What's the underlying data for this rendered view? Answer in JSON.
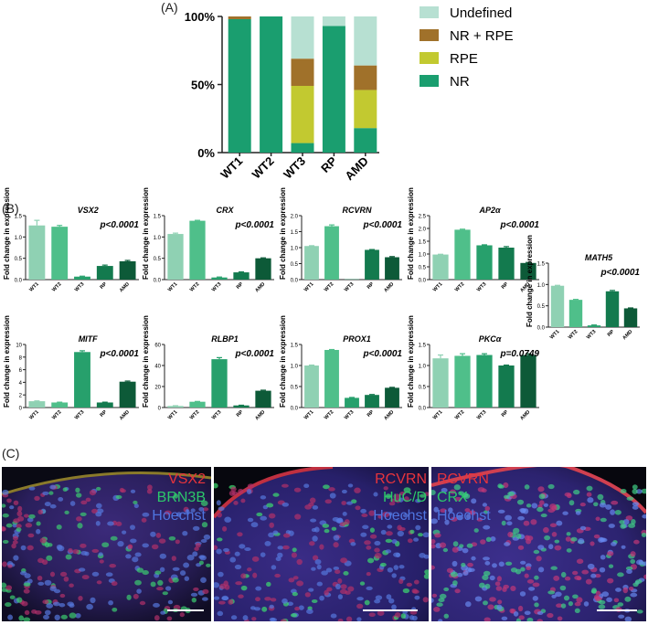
{
  "panels": {
    "a": "(A)",
    "b": "(B)",
    "c": "(C)"
  },
  "chart_data": [
    {
      "type": "bar",
      "stacked": true,
      "categories": [
        "WT1",
        "WT2",
        "WT3",
        "RP",
        "AMD"
      ],
      "yticks": [
        "0%",
        "50%",
        "100%"
      ],
      "ylim": [
        0,
        100
      ],
      "legend_position": "right",
      "series": [
        {
          "name": "NR",
          "color": "#1a9e6f",
          "values": [
            98,
            100,
            7,
            93,
            18
          ]
        },
        {
          "name": "RPE",
          "color": "#c2c930",
          "values": [
            0,
            0,
            42,
            0,
            28
          ]
        },
        {
          "name": "NR + RPE",
          "color": "#a0712a",
          "values": [
            2,
            0,
            20,
            0,
            18
          ]
        },
        {
          "name": "Undefined",
          "color": "#b7e0d2",
          "values": [
            0,
            0,
            31,
            7,
            36
          ]
        }
      ]
    },
    {
      "type": "bar",
      "title": "VSX2",
      "pvalue": "p<0.0001",
      "ylabel": "Fold change in expression",
      "categories": [
        "WT1",
        "WT2",
        "WT3",
        "RP",
        "AMD"
      ],
      "values": [
        1.27,
        1.24,
        0.07,
        0.32,
        0.43
      ],
      "errors": [
        0.12,
        0.03,
        0.01,
        0.02,
        0.02
      ],
      "ylim": [
        0,
        1.5
      ],
      "yticks": [
        "0.0",
        "0.5",
        "1.0",
        "1.5"
      ]
    },
    {
      "type": "bar",
      "title": "CRX",
      "pvalue": "p<0.0001",
      "ylabel": "Fold change in expression",
      "categories": [
        "WT1",
        "WT2",
        "WT3",
        "RP",
        "AMD"
      ],
      "values": [
        1.07,
        1.38,
        0.05,
        0.17,
        0.5
      ],
      "errors": [
        0.02,
        0.01,
        0.01,
        0.01,
        0.01
      ],
      "ylim": [
        0,
        1.5
      ],
      "yticks": [
        "0.0",
        "0.5",
        "1.0",
        "1.5"
      ]
    },
    {
      "type": "bar",
      "title": "RCVRN",
      "pvalue": "p<0.0001",
      "ylabel": "Fold change in expression",
      "categories": [
        "WT1",
        "WT2",
        "WT3",
        "RP",
        "AMD"
      ],
      "values": [
        1.05,
        1.67,
        0.01,
        0.93,
        0.7
      ],
      "errors": [
        0.01,
        0.04,
        0.0,
        0.01,
        0.02
      ],
      "ylim": [
        0,
        2.0
      ],
      "yticks": [
        "0.0",
        "0.5",
        "1.0",
        "1.5",
        "2.0"
      ]
    },
    {
      "type": "bar",
      "title": "AP2α",
      "pvalue": "p<0.0001",
      "ylabel": "Fold change in expression",
      "categories": [
        "WT1",
        "WT2",
        "WT3",
        "RP",
        "AMD"
      ],
      "values": [
        0.98,
        1.95,
        1.34,
        1.25,
        0.65
      ],
      "errors": [
        0.01,
        0.02,
        0.02,
        0.04,
        0.02
      ],
      "ylim": [
        0,
        2.5
      ],
      "yticks": [
        "0.0",
        "0.5",
        "1.0",
        "1.5",
        "2.0",
        "2.5"
      ]
    },
    {
      "type": "bar",
      "title": "MATH5",
      "pvalue": "p<0.0001",
      "ylabel": "Fold change in expression",
      "categories": [
        "WT1",
        "WT2",
        "WT3",
        "RP",
        "AMD"
      ],
      "values": [
        0.97,
        0.64,
        0.04,
        0.84,
        0.44
      ],
      "errors": [
        0.01,
        0.01,
        0.01,
        0.02,
        0.01
      ],
      "ylim": [
        0,
        1.5
      ],
      "yticks": [
        "0.0",
        "0.5",
        "1.0",
        "1.5"
      ]
    },
    {
      "type": "bar",
      "title": "MITF",
      "pvalue": "p<0.0001",
      "ylabel": "Fold change in expression",
      "categories": [
        "WT1",
        "WT2",
        "WT3",
        "RP",
        "AMD"
      ],
      "values": [
        1.0,
        0.8,
        8.8,
        0.8,
        4.1
      ],
      "errors": [
        0.05,
        0.05,
        0.2,
        0.05,
        0.1
      ],
      "ylim": [
        0,
        10
      ],
      "yticks": [
        "0",
        "2",
        "4",
        "6",
        "8",
        "10"
      ]
    },
    {
      "type": "bar",
      "title": "RLBP1",
      "pvalue": "p<0.0001",
      "ylabel": "Fold change in expression",
      "categories": [
        "WT1",
        "WT2",
        "WT3",
        "RP",
        "AMD"
      ],
      "values": [
        1.5,
        5.5,
        46,
        2.0,
        16
      ],
      "errors": [
        0.2,
        0.3,
        1.5,
        0.2,
        0.5
      ],
      "ylim": [
        0,
        60
      ],
      "yticks": [
        "0",
        "20",
        "40",
        "60"
      ]
    },
    {
      "type": "bar",
      "title": "PROX1",
      "pvalue": "p<0.0001",
      "ylabel": "Fold change in expression",
      "categories": [
        "WT1",
        "WT2",
        "WT3",
        "RP",
        "AMD"
      ],
      "values": [
        1.0,
        1.37,
        0.23,
        0.3,
        0.47
      ],
      "errors": [
        0.01,
        0.01,
        0.01,
        0.01,
        0.01
      ],
      "ylim": [
        0,
        1.5
      ],
      "yticks": [
        "0.0",
        "0.5",
        "1.0",
        "1.5"
      ]
    },
    {
      "type": "bar",
      "title": "PKCα",
      "pvalue": "p=0.0749",
      "ylabel": "Fold change in expression",
      "categories": [
        "WT1",
        "WT2",
        "WT3",
        "RP",
        "AMD"
      ],
      "values": [
        1.17,
        1.23,
        1.25,
        1.0,
        1.25
      ],
      "errors": [
        0.08,
        0.05,
        0.03,
        0.01,
        0.03
      ],
      "ylim": [
        0,
        1.5
      ],
      "yticks": [
        "0.0",
        "0.5",
        "1.0",
        "1.5"
      ]
    }
  ],
  "bar_colors": [
    "#8fd1b3",
    "#4fbf8a",
    "#27a06c",
    "#137a4e",
    "#0d5a38"
  ],
  "micrographs": [
    {
      "lines": [
        "VSX2",
        "BRN3B",
        "Hoechst"
      ],
      "colors": [
        "#e8343c",
        "#2cc86a",
        "#4f75e0"
      ]
    },
    {
      "lines": [
        "RCVRN",
        "HuC/D",
        "Hoechst"
      ],
      "colors": [
        "#e8343c",
        "#2cc86a",
        "#4f75e0"
      ]
    },
    {
      "lines": [
        "RCVRN",
        "CRX",
        "Hoechst"
      ],
      "colors": [
        "#e8343c",
        "#2cc86a",
        "#4f75e0"
      ]
    }
  ]
}
